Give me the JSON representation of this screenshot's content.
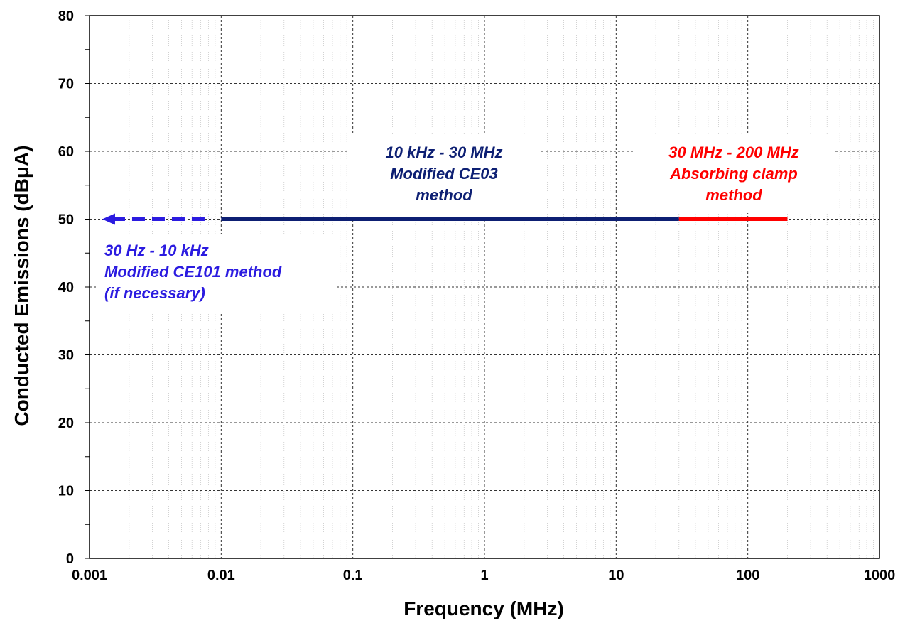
{
  "chart_data": {
    "type": "line",
    "title": "",
    "xlabel": "Frequency (MHz)",
    "ylabel": "Conducted Emissions (dBμA)",
    "x_scale": "log",
    "xlim": [
      0.001,
      1000
    ],
    "ylim": [
      0,
      80
    ],
    "x_ticks": [
      "0.001",
      "0.01",
      "0.1",
      "1",
      "10",
      "100",
      "1000"
    ],
    "y_ticks": [
      "0",
      "10",
      "20",
      "30",
      "40",
      "50",
      "60",
      "70",
      "80"
    ],
    "grid": true,
    "series": [
      {
        "name": "",
        "style": "dashed-arrow-left",
        "color": "#2b1be0",
        "x": [
          0.00125,
          0.0085
        ],
        "y": [
          50,
          50
        ]
      },
      {
        "name": "",
        "style": "solid",
        "color": "#0d1f73",
        "x": [
          0.01,
          30
        ],
        "y": [
          50,
          50
        ]
      },
      {
        "name": "",
        "style": "solid",
        "color": "#ff0000",
        "x": [
          30,
          200
        ],
        "y": [
          50,
          50
        ]
      }
    ],
    "annotations": [
      {
        "lines": [
          "30 Hz - 10 kHz",
          "Modified CE101 method",
          "(if necessary)"
        ],
        "color": "#2b1be0"
      },
      {
        "lines": [
          "10 kHz - 30 MHz",
          "Modified CE03",
          "method"
        ],
        "color": "#0d1f73"
      },
      {
        "lines": [
          "30 MHz - 200 MHz",
          "Absorbing clamp",
          "method"
        ],
        "color": "#ff0000"
      }
    ]
  }
}
